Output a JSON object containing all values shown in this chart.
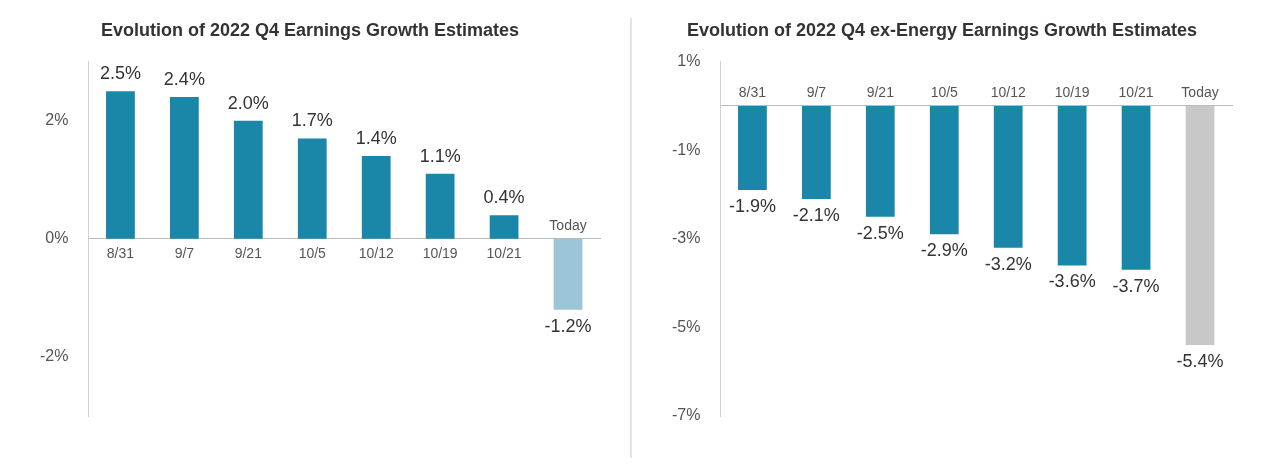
{
  "chart_data": [
    {
      "type": "bar",
      "title": "Evolution of 2022 Q4 Earnings Growth Estimates",
      "categories": [
        "8/31",
        "9/7",
        "9/21",
        "10/5",
        "10/12",
        "10/19",
        "10/21",
        "Today"
      ],
      "values": [
        2.5,
        2.4,
        2.0,
        1.7,
        1.4,
        1.1,
        0.4,
        -1.2
      ],
      "colors": [
        "#1a86a8",
        "#1a86a8",
        "#1a86a8",
        "#1a86a8",
        "#1a86a8",
        "#1a86a8",
        "#1a86a8",
        "#9cc6d8"
      ],
      "value_labels": [
        "2.5%",
        "2.4%",
        "2.0%",
        "1.7%",
        "1.4%",
        "1.1%",
        "0.4%",
        "-1.2%"
      ],
      "ylim": [
        -3,
        3
      ],
      "yticks": [
        {
          "value": -2,
          "label": "-2%"
        },
        {
          "value": 0,
          "label": "0%"
        },
        {
          "value": 2,
          "label": "2%"
        }
      ],
      "grid": false
    },
    {
      "type": "bar",
      "title": "Evolution of 2022 Q4 ex-Energy Earnings Growth Estimates",
      "categories": [
        "8/31",
        "9/7",
        "9/21",
        "10/5",
        "10/12",
        "10/19",
        "10/21",
        "Today"
      ],
      "values": [
        -1.9,
        -2.1,
        -2.5,
        -2.9,
        -3.2,
        -3.6,
        -3.7,
        -5.4
      ],
      "colors": [
        "#1a86a8",
        "#1a86a8",
        "#1a86a8",
        "#1a86a8",
        "#1a86a8",
        "#1a86a8",
        "#1a86a8",
        "#c8c8c8"
      ],
      "value_labels": [
        "-1.9%",
        "-2.1%",
        "-2.5%",
        "-2.9%",
        "-3.2%",
        "-3.6%",
        "-3.7%",
        "-5.4%"
      ],
      "ylim": [
        -7,
        1
      ],
      "yticks": [
        {
          "value": 1,
          "label": "1%"
        },
        {
          "value": -1,
          "label": "-1%"
        },
        {
          "value": -3,
          "label": "-3%"
        },
        {
          "value": -5,
          "label": "-5%"
        },
        {
          "value": -7,
          "label": "-7%"
        }
      ],
      "grid": false
    }
  ]
}
